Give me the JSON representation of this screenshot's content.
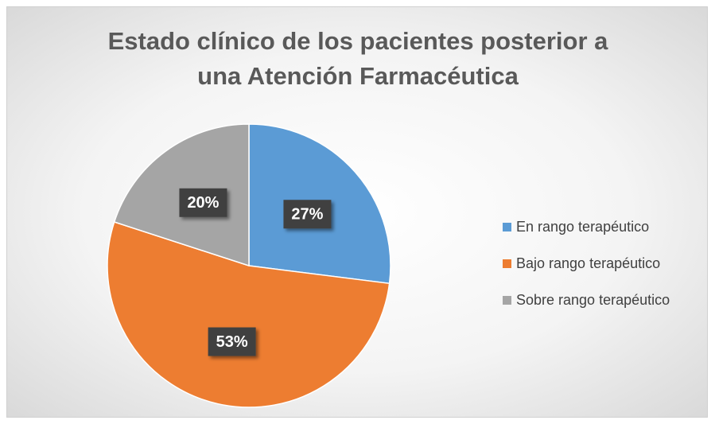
{
  "chart_data": {
    "type": "pie",
    "title": "Estado clínico de los pacientes posterior a una Atención Farmacéutica",
    "categories": [
      "En rango terapéutico",
      "Bajo rango terapéutico",
      "Sobre rango terapéutico"
    ],
    "values": [
      27,
      53,
      20
    ],
    "value_labels": [
      "27%",
      "53%",
      "20%"
    ],
    "colors": [
      "#5b9bd5",
      "#ed7d31",
      "#a5a5a5"
    ],
    "legend": "right"
  }
}
